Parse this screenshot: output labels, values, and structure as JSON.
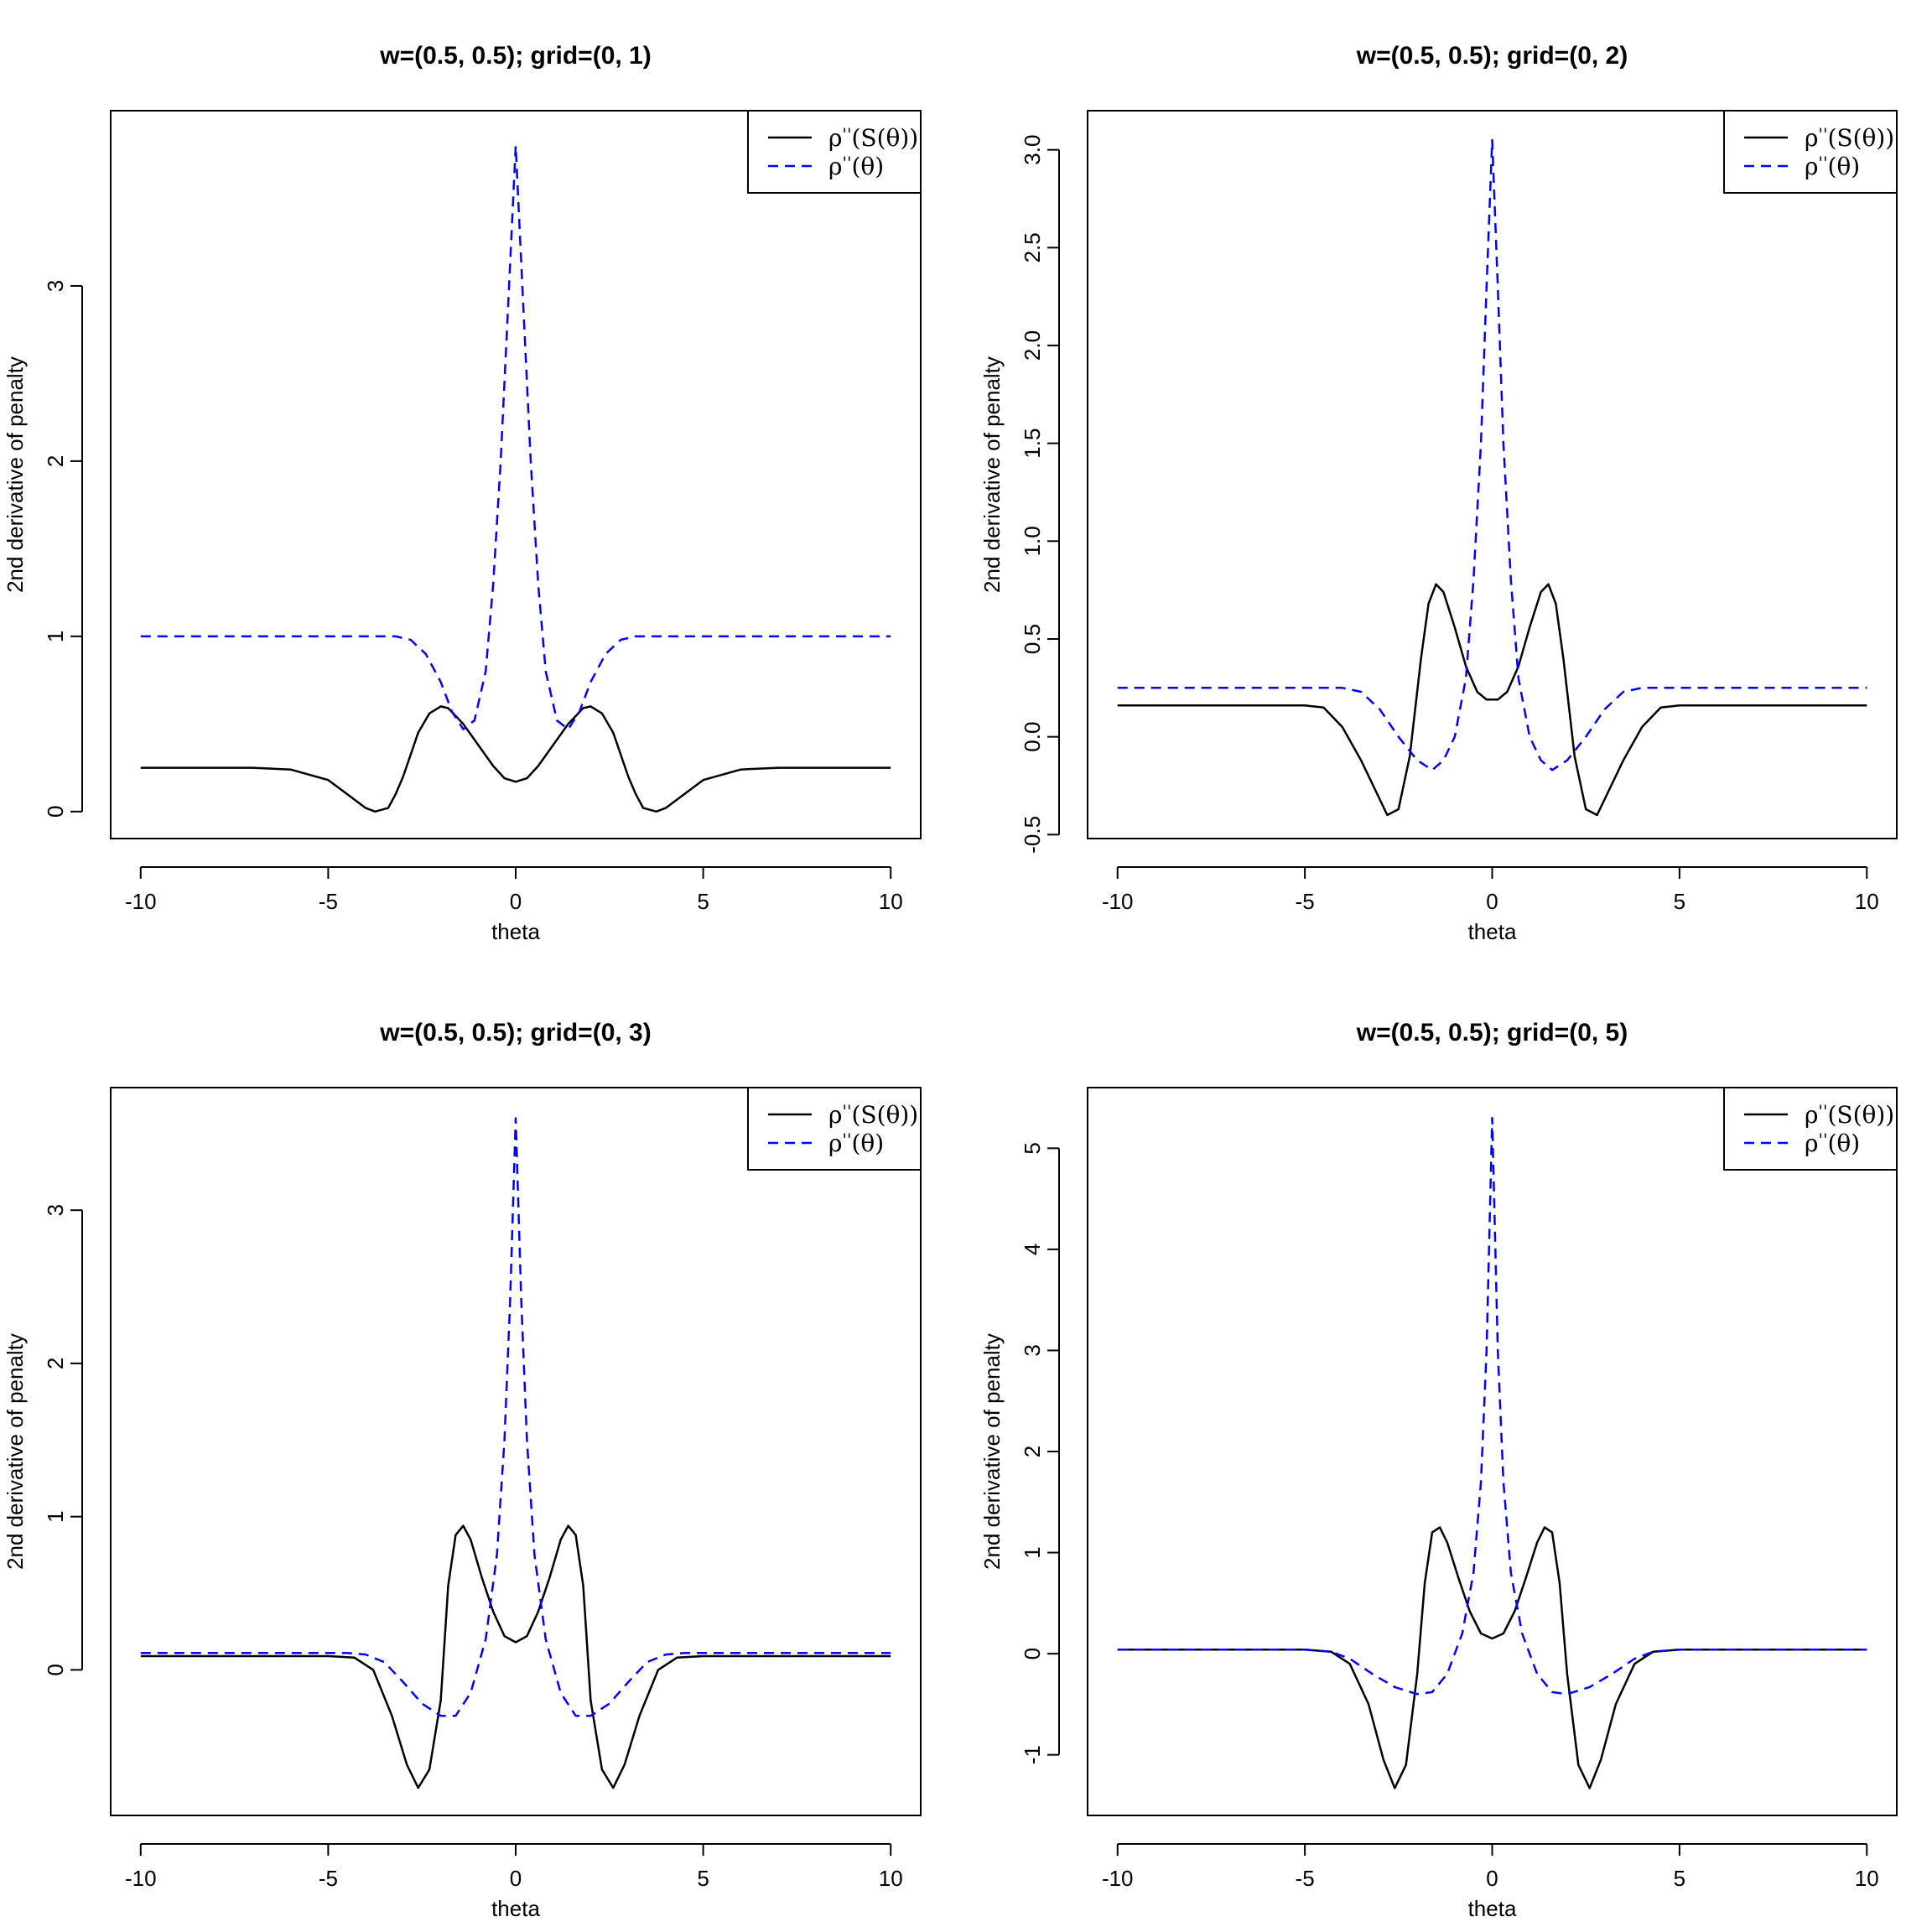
{
  "chart_data": [
    {
      "type": "line",
      "title": "w=(0.5, 0.5); grid=(0, 1)",
      "xlabel": "theta",
      "ylabel": "2nd derivative of penalty",
      "xlim": [
        -10.8,
        10.8
      ],
      "ylim": [
        -0.154,
        4.0
      ],
      "xticks": [
        -10,
        -5,
        0,
        5,
        10
      ],
      "yticks": [
        0,
        1,
        2,
        3
      ],
      "legend_position": "top-right",
      "series": [
        {
          "name": "ρ''(S(θ))",
          "color": "#000000",
          "dash": "solid",
          "points": [
            [
              -10,
              0.25
            ],
            [
              -7,
              0.25
            ],
            [
              -6,
              0.24
            ],
            [
              -5,
              0.18
            ],
            [
              -4.5,
              0.1
            ],
            [
              -4,
              0.02
            ],
            [
              -3.75,
              0
            ],
            [
              -3.4,
              0.02
            ],
            [
              -3.2,
              0.1
            ],
            [
              -3,
              0.2
            ],
            [
              -2.6,
              0.45
            ],
            [
              -2.3,
              0.56
            ],
            [
              -2,
              0.6
            ],
            [
              -1.8,
              0.59
            ],
            [
              -1.4,
              0.5
            ],
            [
              -1,
              0.38
            ],
            [
              -0.6,
              0.26
            ],
            [
              -0.3,
              0.19
            ],
            [
              0,
              0.17
            ],
            [
              0.3,
              0.19
            ],
            [
              0.6,
              0.26
            ],
            [
              1,
              0.38
            ],
            [
              1.4,
              0.5
            ],
            [
              1.8,
              0.59
            ],
            [
              2,
              0.6
            ],
            [
              2.3,
              0.56
            ],
            [
              2.6,
              0.45
            ],
            [
              3,
              0.2
            ],
            [
              3.2,
              0.1
            ],
            [
              3.4,
              0.02
            ],
            [
              3.75,
              0
            ],
            [
              4,
              0.02
            ],
            [
              4.5,
              0.1
            ],
            [
              5,
              0.18
            ],
            [
              6,
              0.24
            ],
            [
              7,
              0.25
            ],
            [
              10,
              0.25
            ]
          ]
        },
        {
          "name": "ρ''(θ)",
          "color": "#0000ff",
          "dash": "dashed",
          "points": [
            [
              -10,
              1
            ],
            [
              -3.2,
              1
            ],
            [
              -2.8,
              0.98
            ],
            [
              -2.4,
              0.9
            ],
            [
              -2,
              0.74
            ],
            [
              -1.7,
              0.57
            ],
            [
              -1.4,
              0.47
            ],
            [
              -1.1,
              0.52
            ],
            [
              -0.8,
              0.8
            ],
            [
              -0.6,
              1.3
            ],
            [
              -0.4,
              2
            ],
            [
              -0.2,
              2.9
            ],
            [
              0,
              3.8
            ],
            [
              0.2,
              2.9
            ],
            [
              0.4,
              2
            ],
            [
              0.6,
              1.3
            ],
            [
              0.8,
              0.8
            ],
            [
              1.1,
              0.52
            ],
            [
              1.4,
              0.47
            ],
            [
              1.7,
              0.57
            ],
            [
              2,
              0.74
            ],
            [
              2.4,
              0.9
            ],
            [
              2.8,
              0.98
            ],
            [
              3.2,
              1
            ],
            [
              10,
              1
            ]
          ]
        }
      ]
    },
    {
      "type": "line",
      "title": "w=(0.5, 0.5); grid=(0, 2)",
      "xlabel": "theta",
      "ylabel": "2nd derivative of penalty",
      "xlim": [
        -10.8,
        10.8
      ],
      "ylim": [
        -0.52,
        3.2
      ],
      "xticks": [
        -10,
        -5,
        0,
        5,
        10
      ],
      "yticks": [
        -0.5,
        0.0,
        0.5,
        1.0,
        1.5,
        2.0,
        2.5,
        3.0
      ],
      "yticklabels": [
        "-0.5",
        "0.0",
        "0.5",
        "1.0",
        "1.5",
        "2.0",
        "2.5",
        "3.0"
      ],
      "legend_position": "top-right",
      "series": [
        {
          "name": "ρ''(S(θ))",
          "color": "#000000",
          "dash": "solid",
          "points": [
            [
              -10,
              0.16
            ],
            [
              -5,
              0.16
            ],
            [
              -4.5,
              0.15
            ],
            [
              -4,
              0.05
            ],
            [
              -3.5,
              -0.12
            ],
            [
              -3.1,
              -0.28
            ],
            [
              -2.8,
              -0.4
            ],
            [
              -2.5,
              -0.37
            ],
            [
              -2.2,
              -0.1
            ],
            [
              -1.9,
              0.4
            ],
            [
              -1.7,
              0.68
            ],
            [
              -1.5,
              0.78
            ],
            [
              -1.3,
              0.74
            ],
            [
              -1,
              0.56
            ],
            [
              -0.7,
              0.36
            ],
            [
              -0.4,
              0.23
            ],
            [
              -0.15,
              0.19
            ],
            [
              0,
              0.19
            ],
            [
              0.15,
              0.19
            ],
            [
              0.4,
              0.23
            ],
            [
              0.7,
              0.36
            ],
            [
              1,
              0.56
            ],
            [
              1.3,
              0.74
            ],
            [
              1.5,
              0.78
            ],
            [
              1.7,
              0.68
            ],
            [
              1.9,
              0.4
            ],
            [
              2.2,
              -0.1
            ],
            [
              2.5,
              -0.37
            ],
            [
              2.8,
              -0.4
            ],
            [
              3.1,
              -0.28
            ],
            [
              3.5,
              -0.12
            ],
            [
              4,
              0.05
            ],
            [
              4.5,
              0.15
            ],
            [
              5,
              0.16
            ],
            [
              10,
              0.16
            ]
          ]
        },
        {
          "name": "ρ''(θ)",
          "color": "#0000ff",
          "dash": "dashed",
          "points": [
            [
              -10,
              0.25
            ],
            [
              -4,
              0.25
            ],
            [
              -3.5,
              0.23
            ],
            [
              -3,
              0.14
            ],
            [
              -2.5,
              0
            ],
            [
              -2,
              -0.12
            ],
            [
              -1.6,
              -0.17
            ],
            [
              -1.3,
              -0.12
            ],
            [
              -1,
              0
            ],
            [
              -0.7,
              0.3
            ],
            [
              -0.5,
              0.8
            ],
            [
              -0.3,
              1.5
            ],
            [
              -0.15,
              2.3
            ],
            [
              0,
              3.05
            ],
            [
              0.15,
              2.3
            ],
            [
              0.3,
              1.5
            ],
            [
              0.5,
              0.8
            ],
            [
              0.7,
              0.3
            ],
            [
              1,
              0
            ],
            [
              1.3,
              -0.12
            ],
            [
              1.6,
              -0.17
            ],
            [
              2,
              -0.12
            ],
            [
              2.5,
              0
            ],
            [
              3,
              0.14
            ],
            [
              3.5,
              0.23
            ],
            [
              4,
              0.25
            ],
            [
              10,
              0.25
            ]
          ]
        }
      ]
    },
    {
      "type": "line",
      "title": "w=(0.5, 0.5); grid=(0, 3)",
      "xlabel": "theta",
      "ylabel": "2nd derivative of penalty",
      "xlim": [
        -10.8,
        10.8
      ],
      "ylim": [
        -0.95,
        3.8
      ],
      "xticks": [
        -10,
        -5,
        0,
        5,
        10
      ],
      "yticks": [
        0,
        1,
        2,
        3
      ],
      "legend_position": "top-right",
      "series": [
        {
          "name": "ρ''(S(θ))",
          "color": "#000000",
          "dash": "solid",
          "points": [
            [
              -10,
              0.09
            ],
            [
              -5,
              0.09
            ],
            [
              -4.3,
              0.08
            ],
            [
              -3.8,
              0
            ],
            [
              -3.3,
              -0.3
            ],
            [
              -2.9,
              -0.62
            ],
            [
              -2.6,
              -0.77
            ],
            [
              -2.3,
              -0.65
            ],
            [
              -2,
              -0.2
            ],
            [
              -1.8,
              0.55
            ],
            [
              -1.6,
              0.88
            ],
            [
              -1.4,
              0.94
            ],
            [
              -1.2,
              0.85
            ],
            [
              -0.9,
              0.6
            ],
            [
              -0.6,
              0.38
            ],
            [
              -0.3,
              0.22
            ],
            [
              0,
              0.18
            ],
            [
              0.3,
              0.22
            ],
            [
              0.6,
              0.38
            ],
            [
              0.9,
              0.6
            ],
            [
              1.2,
              0.85
            ],
            [
              1.4,
              0.94
            ],
            [
              1.6,
              0.88
            ],
            [
              1.8,
              0.55
            ],
            [
              2,
              -0.2
            ],
            [
              2.3,
              -0.65
            ],
            [
              2.6,
              -0.77
            ],
            [
              2.9,
              -0.62
            ],
            [
              3.3,
              -0.3
            ],
            [
              3.8,
              0
            ],
            [
              4.3,
              0.08
            ],
            [
              5,
              0.09
            ],
            [
              10,
              0.09
            ]
          ]
        },
        {
          "name": "ρ''(θ)",
          "color": "#0000ff",
          "dash": "dashed",
          "points": [
            [
              -10,
              0.11
            ],
            [
              -4.5,
              0.11
            ],
            [
              -4,
              0.1
            ],
            [
              -3.5,
              0.05
            ],
            [
              -3,
              -0.08
            ],
            [
              -2.5,
              -0.22
            ],
            [
              -2,
              -0.3
            ],
            [
              -1.6,
              -0.3
            ],
            [
              -1.2,
              -0.15
            ],
            [
              -0.8,
              0.2
            ],
            [
              -0.5,
              0.75
            ],
            [
              -0.3,
              1.5
            ],
            [
              -0.15,
              2.4
            ],
            [
              0,
              3.6
            ],
            [
              0.15,
              2.4
            ],
            [
              0.3,
              1.5
            ],
            [
              0.5,
              0.75
            ],
            [
              0.8,
              0.2
            ],
            [
              1.2,
              -0.15
            ],
            [
              1.6,
              -0.3
            ],
            [
              2,
              -0.3
            ],
            [
              2.5,
              -0.22
            ],
            [
              3,
              -0.08
            ],
            [
              3.5,
              0.05
            ],
            [
              4,
              0.1
            ],
            [
              4.5,
              0.11
            ],
            [
              10,
              0.11
            ]
          ]
        }
      ]
    },
    {
      "type": "line",
      "title": "w=(0.5, 0.5); grid=(0, 5)",
      "xlabel": "theta",
      "ylabel": "2nd derivative of penalty",
      "xlim": [
        -10.8,
        10.8
      ],
      "ylim": [
        -1.6,
        5.6
      ],
      "xticks": [
        -10,
        -5,
        0,
        5,
        10
      ],
      "yticks": [
        -1,
        0,
        1,
        2,
        3,
        4,
        5
      ],
      "legend_position": "top-right",
      "series": [
        {
          "name": "ρ''(S(θ))",
          "color": "#000000",
          "dash": "solid",
          "points": [
            [
              -10,
              0.04
            ],
            [
              -5,
              0.04
            ],
            [
              -4.3,
              0.02
            ],
            [
              -3.8,
              -0.1
            ],
            [
              -3.3,
              -0.5
            ],
            [
              -2.9,
              -1.05
            ],
            [
              -2.6,
              -1.33
            ],
            [
              -2.3,
              -1.1
            ],
            [
              -2,
              -0.2
            ],
            [
              -1.8,
              0.7
            ],
            [
              -1.6,
              1.2
            ],
            [
              -1.4,
              1.25
            ],
            [
              -1.2,
              1.1
            ],
            [
              -0.9,
              0.75
            ],
            [
              -0.6,
              0.42
            ],
            [
              -0.3,
              0.2
            ],
            [
              0,
              0.15
            ],
            [
              0.3,
              0.2
            ],
            [
              0.6,
              0.42
            ],
            [
              0.9,
              0.75
            ],
            [
              1.2,
              1.1
            ],
            [
              1.4,
              1.25
            ],
            [
              1.6,
              1.2
            ],
            [
              1.8,
              0.7
            ],
            [
              2,
              -0.2
            ],
            [
              2.3,
              -1.1
            ],
            [
              2.6,
              -1.33
            ],
            [
              2.9,
              -1.05
            ],
            [
              3.3,
              -0.5
            ],
            [
              3.8,
              -0.1
            ],
            [
              4.3,
              0.02
            ],
            [
              5,
              0.04
            ],
            [
              10,
              0.04
            ]
          ]
        },
        {
          "name": "ρ''(θ)",
          "color": "#0000ff",
          "dash": "dashed",
          "points": [
            [
              -10,
              0.04
            ],
            [
              -5,
              0.04
            ],
            [
              -4.3,
              0.02
            ],
            [
              -3.8,
              -0.05
            ],
            [
              -3.2,
              -0.2
            ],
            [
              -2.6,
              -0.33
            ],
            [
              -2,
              -0.4
            ],
            [
              -1.6,
              -0.38
            ],
            [
              -1.2,
              -0.2
            ],
            [
              -0.8,
              0.2
            ],
            [
              -0.5,
              0.8
            ],
            [
              -0.3,
              1.7
            ],
            [
              -0.15,
              3
            ],
            [
              0,
              5.3
            ],
            [
              0.15,
              3
            ],
            [
              0.3,
              1.7
            ],
            [
              0.5,
              0.8
            ],
            [
              0.8,
              0.2
            ],
            [
              1.2,
              -0.2
            ],
            [
              1.6,
              -0.38
            ],
            [
              2,
              -0.4
            ],
            [
              2.6,
              -0.33
            ],
            [
              3.2,
              -0.2
            ],
            [
              3.8,
              -0.05
            ],
            [
              4.3,
              0.02
            ],
            [
              5,
              0.04
            ],
            [
              10,
              0.04
            ]
          ]
        }
      ]
    }
  ]
}
